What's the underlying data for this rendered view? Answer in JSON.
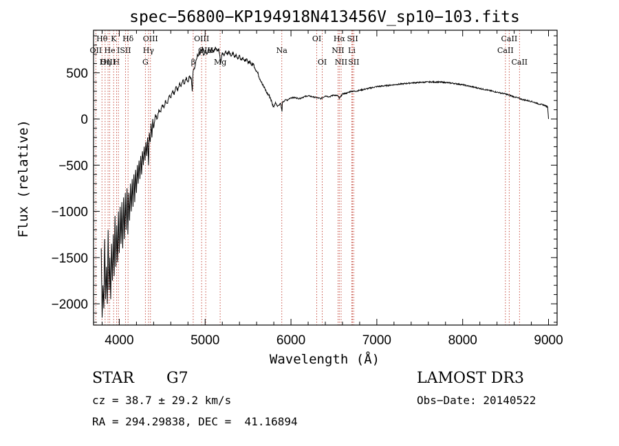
{
  "chart_data": {
    "type": "line",
    "title": "spec−56800−KP194918N413456V_sp10−103.fits",
    "xlabel": "Wavelength (Å)",
    "ylabel": "Flux (relative)",
    "xlim": [
      3700,
      9100
    ],
    "ylim": [
      -2230,
      960
    ],
    "x_ticks": [
      4000,
      5000,
      6000,
      7000,
      8000,
      9000
    ],
    "x_tick_labels": [
      "4000",
      "5000",
      "6000",
      "7000",
      "8000",
      "9000"
    ],
    "y_ticks": [
      -2000,
      -1500,
      -1000,
      -500,
      0,
      500
    ],
    "y_tick_labels": [
      "−2000",
      "−1500",
      "−1000",
      "−500",
      "0",
      "500"
    ],
    "series": [
      {
        "name": "flux",
        "points": [
          [
            3790,
            -1400
          ],
          [
            3800,
            -2150
          ],
          [
            3810,
            -1800
          ],
          [
            3820,
            -2050
          ],
          [
            3830,
            -1300
          ],
          [
            3840,
            -1950
          ],
          [
            3850,
            -1600
          ],
          [
            3860,
            -2000
          ],
          [
            3870,
            -1200
          ],
          [
            3880,
            -1850
          ],
          [
            3890,
            -1500
          ],
          [
            3900,
            -1950
          ],
          [
            3910,
            -1350
          ],
          [
            3920,
            -1750
          ],
          [
            3930,
            -1250
          ],
          [
            3940,
            -1700
          ],
          [
            3950,
            -1050
          ],
          [
            3960,
            -1600
          ],
          [
            3970,
            -1150
          ],
          [
            3980,
            -1550
          ],
          [
            3990,
            -1000
          ],
          [
            4000,
            -1450
          ],
          [
            4010,
            -950
          ],
          [
            4020,
            -1350
          ],
          [
            4030,
            -900
          ],
          [
            4040,
            -1400
          ],
          [
            4050,
            -850
          ],
          [
            4060,
            -1300
          ],
          [
            4070,
            -800
          ],
          [
            4080,
            -1200
          ],
          [
            4090,
            -750
          ],
          [
            4100,
            -1250
          ],
          [
            4110,
            -800
          ],
          [
            4120,
            -1100
          ],
          [
            4130,
            -700
          ],
          [
            4140,
            -1000
          ],
          [
            4150,
            -650
          ],
          [
            4160,
            -950
          ],
          [
            4170,
            -600
          ],
          [
            4180,
            -900
          ],
          [
            4190,
            -550
          ],
          [
            4200,
            -800
          ],
          [
            4210,
            -500
          ],
          [
            4220,
            -700
          ],
          [
            4230,
            -450
          ],
          [
            4240,
            -650
          ],
          [
            4250,
            -400
          ],
          [
            4260,
            -600
          ],
          [
            4270,
            -350
          ],
          [
            4280,
            -500
          ],
          [
            4290,
            -300
          ],
          [
            4300,
            -450
          ],
          [
            4310,
            -250
          ],
          [
            4320,
            -400
          ],
          [
            4330,
            -200
          ],
          [
            4340,
            -500
          ],
          [
            4350,
            -150
          ],
          [
            4360,
            -250
          ],
          [
            4370,
            -50
          ],
          [
            4380,
            -200
          ],
          [
            4390,
            0
          ],
          [
            4400,
            -100
          ],
          [
            4420,
            50
          ],
          [
            4440,
            0
          ],
          [
            4460,
            100
          ],
          [
            4480,
            80
          ],
          [
            4500,
            150
          ],
          [
            4520,
            120
          ],
          [
            4540,
            200
          ],
          [
            4560,
            170
          ],
          [
            4580,
            250
          ],
          [
            4600,
            230
          ],
          [
            4620,
            300
          ],
          [
            4640,
            260
          ],
          [
            4660,
            350
          ],
          [
            4680,
            300
          ],
          [
            4700,
            380
          ],
          [
            4720,
            350
          ],
          [
            4740,
            420
          ],
          [
            4760,
            380
          ],
          [
            4780,
            450
          ],
          [
            4800,
            400
          ],
          [
            4820,
            470
          ],
          [
            4840,
            430
          ],
          [
            4850,
            300
          ],
          [
            4860,
            520
          ],
          [
            4880,
            560
          ],
          [
            4890,
            610
          ],
          [
            4900,
            650
          ],
          [
            4910,
            700
          ],
          [
            4920,
            680
          ],
          [
            4930,
            730
          ],
          [
            4940,
            700
          ],
          [
            4950,
            760
          ],
          [
            4960,
            720
          ],
          [
            4970,
            780
          ],
          [
            4980,
            690
          ],
          [
            5000,
            740
          ],
          [
            5020,
            700
          ],
          [
            5040,
            760
          ],
          [
            5060,
            720
          ],
          [
            5080,
            770
          ],
          [
            5100,
            720
          ],
          [
            5120,
            780
          ],
          [
            5140,
            730
          ],
          [
            5160,
            760
          ],
          [
            5180,
            600
          ],
          [
            5200,
            720
          ],
          [
            5220,
            680
          ],
          [
            5240,
            740
          ],
          [
            5260,
            690
          ],
          [
            5280,
            730
          ],
          [
            5300,
            680
          ],
          [
            5320,
            720
          ],
          [
            5340,
            670
          ],
          [
            5360,
            700
          ],
          [
            5380,
            650
          ],
          [
            5400,
            690
          ],
          [
            5420,
            640
          ],
          [
            5440,
            670
          ],
          [
            5460,
            620
          ],
          [
            5480,
            650
          ],
          [
            5500,
            600
          ],
          [
            5520,
            630
          ],
          [
            5540,
            580
          ],
          [
            5560,
            600
          ],
          [
            5580,
            550
          ],
          [
            5600,
            520
          ],
          [
            5620,
            480
          ],
          [
            5640,
            430
          ],
          [
            5660,
            400
          ],
          [
            5680,
            350
          ],
          [
            5700,
            320
          ],
          [
            5720,
            280
          ],
          [
            5740,
            260
          ],
          [
            5760,
            230
          ],
          [
            5780,
            170
          ],
          [
            5800,
            130
          ],
          [
            5820,
            180
          ],
          [
            5840,
            140
          ],
          [
            5860,
            150
          ],
          [
            5880,
            170
          ],
          [
            5895,
            80
          ],
          [
            5900,
            180
          ],
          [
            5920,
            190
          ],
          [
            5940,
            210
          ],
          [
            5960,
            200
          ],
          [
            5980,
            220
          ],
          [
            6000,
            230
          ],
          [
            6050,
            230
          ],
          [
            6100,
            220
          ],
          [
            6150,
            240
          ],
          [
            6200,
            250
          ],
          [
            6250,
            240
          ],
          [
            6300,
            230
          ],
          [
            6350,
            220
          ],
          [
            6400,
            250
          ],
          [
            6450,
            240
          ],
          [
            6500,
            260
          ],
          [
            6550,
            250
          ],
          [
            6562,
            220
          ],
          [
            6600,
            270
          ],
          [
            6650,
            280
          ],
          [
            6700,
            300
          ],
          [
            6750,
            300
          ],
          [
            6800,
            310
          ],
          [
            6900,
            330
          ],
          [
            7000,
            350
          ],
          [
            7100,
            360
          ],
          [
            7200,
            370
          ],
          [
            7300,
            380
          ],
          [
            7400,
            390
          ],
          [
            7500,
            395
          ],
          [
            7600,
            400
          ],
          [
            7700,
            400
          ],
          [
            7800,
            395
          ],
          [
            7900,
            385
          ],
          [
            8000,
            370
          ],
          [
            8100,
            350
          ],
          [
            8200,
            330
          ],
          [
            8300,
            310
          ],
          [
            8400,
            290
          ],
          [
            8500,
            270
          ],
          [
            8600,
            240
          ],
          [
            8700,
            210
          ],
          [
            8800,
            190
          ],
          [
            8900,
            160
          ],
          [
            8950,
            150
          ],
          [
            8990,
            130
          ],
          [
            9000,
            0
          ]
        ]
      }
    ],
    "lines": [
      {
        "label": "Hθ",
        "wavelength": 3798,
        "row": 0
      },
      {
        "label": "OII",
        "wavelength": 3727,
        "row": 1
      },
      {
        "label": "OIII",
        "wavelength": 3869,
        "row": 2
      },
      {
        "label": "He",
        "wavelength": 3889,
        "row": 1
      },
      {
        "label": "K",
        "wavelength": 3934,
        "row": 0
      },
      {
        "label": "Hη",
        "wavelength": 3835,
        "row": 2
      },
      {
        "label": "H",
        "wavelength": 3968,
        "row": 2
      },
      {
        "label": "SII",
        "wavelength": 4072,
        "row": 1
      },
      {
        "label": "I",
        "wavelength": 3990,
        "row": 1
      },
      {
        "label": "Hδ",
        "wavelength": 4102,
        "row": 0
      },
      {
        "label": "OIII",
        "wavelength": 4363,
        "row": 0
      },
      {
        "label": "Hγ",
        "wavelength": 4340,
        "row": 1
      },
      {
        "label": "G",
        "wavelength": 4304,
        "row": 2
      },
      {
        "label": "OIII",
        "wavelength": 4959,
        "row": 0
      },
      {
        "label": "OIII",
        "wavelength": 5007,
        "row": 1
      },
      {
        "label": "β",
        "wavelength": 4861,
        "row": 2
      },
      {
        "label": "Mg",
        "wavelength": 5175,
        "row": 2
      },
      {
        "label": "Na",
        "wavelength": 5893,
        "row": 1
      },
      {
        "label": "OI",
        "wavelength": 6300,
        "row": 0
      },
      {
        "label": "OI",
        "wavelength": 6364,
        "row": 2
      },
      {
        "label": "Hα",
        "wavelength": 6563,
        "row": 0
      },
      {
        "label": "SII",
        "wavelength": 6717,
        "row": 0
      },
      {
        "label": "NII",
        "wavelength": 6548,
        "row": 1
      },
      {
        "label": "Li",
        "wavelength": 6708,
        "row": 1
      },
      {
        "label": "NII",
        "wavelength": 6584,
        "row": 2
      },
      {
        "label": "SII",
        "wavelength": 6731,
        "row": 2
      },
      {
        "label": "CaII",
        "wavelength": 8542,
        "row": 0
      },
      {
        "label": "CaII",
        "wavelength": 8498,
        "row": 1
      },
      {
        "label": "CaII",
        "wavelength": 8662,
        "row": 2
      }
    ]
  },
  "info": {
    "class": "STAR",
    "subclass": "G7",
    "survey": "LAMOST DR3",
    "cz": "cz = 38.7 ± 29.2 km/s",
    "obs_date": "Obs−Date: 20140522",
    "coords": "RA = 294.29838, DEC =  41.16894"
  },
  "colors": {
    "line_marker": "#c0392b",
    "spectrum": "#000000"
  }
}
